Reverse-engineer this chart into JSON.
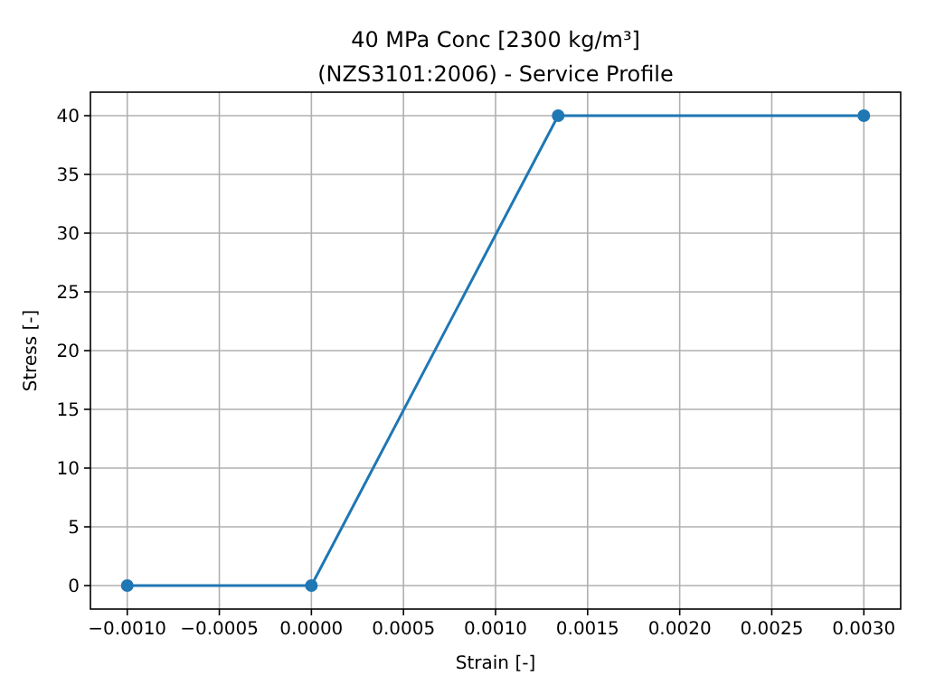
{
  "chart_data": {
    "type": "line",
    "title": "40 MPa Conc [2300 kg/m³]",
    "subtitle": "(NZS3101:2006) - Service Profile",
    "xlabel": "Strain [-]",
    "ylabel": "Stress [-]",
    "x": [
      -0.001,
      0,
      0.00134,
      0.003
    ],
    "series": [
      {
        "color": "#1f77b4",
        "values": [
          0,
          0,
          40,
          40
        ]
      }
    ],
    "xlim": [
      -0.0012,
      0.0032
    ],
    "xticks": [
      {
        "value": -0.001,
        "label": "−0.0010"
      },
      {
        "value": -0.0005,
        "label": "−0.0005"
      },
      {
        "value": 0,
        "label": "0.0000"
      },
      {
        "value": 0.0005,
        "label": "0.0005"
      },
      {
        "value": 0.001,
        "label": "0.0010"
      },
      {
        "value": 0.0015,
        "label": "0.0015"
      },
      {
        "value": 0.002,
        "label": "0.0020"
      },
      {
        "value": 0.0025,
        "label": "0.0025"
      },
      {
        "value": 0.003,
        "label": "0.0030"
      }
    ],
    "ylim": [
      -2,
      42
    ],
    "yticks": [
      0,
      5,
      10,
      15,
      20,
      25,
      30,
      35,
      40
    ],
    "grid": true,
    "marker": "circle",
    "line_style": "solid"
  }
}
